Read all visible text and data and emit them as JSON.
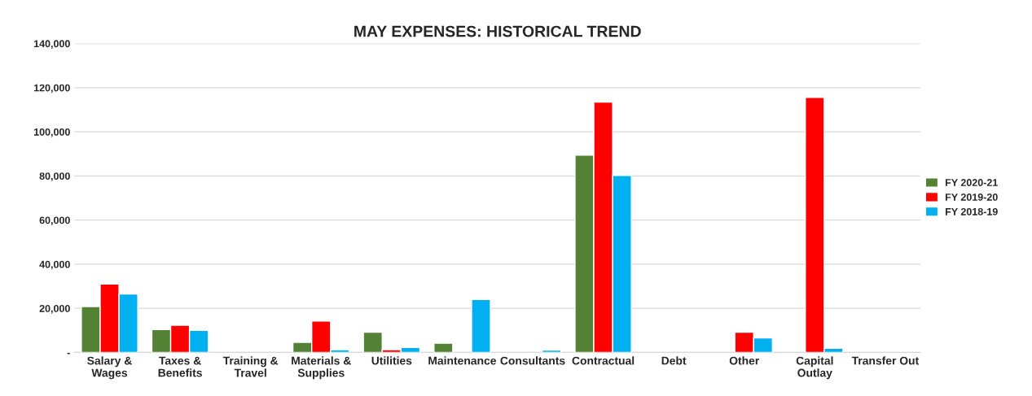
{
  "chart_data": {
    "type": "bar",
    "title": "MAY EXPENSES: HISTORICAL TREND",
    "categories": [
      "Salary &\nWages",
      "Taxes &\nBenefits",
      "Training &\nTravel",
      "Materials &\nSupplies",
      "Utilities",
      "Maintenance",
      "Consultants",
      "Contractual",
      "Debt",
      "Other",
      "Capital\nOutlay",
      "Transfer Out"
    ],
    "series": [
      {
        "name": "FY 2020-21",
        "color": "#548235",
        "values": [
          20800,
          10400,
          null,
          4600,
          9200,
          4200,
          null,
          89400,
          null,
          null,
          null,
          null
        ]
      },
      {
        "name": "FY 2019-20",
        "color": "#ff0000",
        "values": [
          31000,
          12300,
          null,
          14200,
          1200,
          null,
          null,
          113500,
          null,
          9200,
          115600,
          null
        ]
      },
      {
        "name": "FY 2018-19",
        "color": "#00b0f0",
        "values": [
          26500,
          10000,
          null,
          1200,
          2300,
          24000,
          1100,
          80200,
          null,
          6600,
          1900,
          null
        ]
      }
    ],
    "ylim": [
      0,
      140000
    ],
    "yticks": [
      {
        "value": 0,
        "label": "-"
      },
      {
        "value": 20000,
        "label": "20,000"
      },
      {
        "value": 40000,
        "label": "40,000"
      },
      {
        "value": 60000,
        "label": "60,000"
      },
      {
        "value": 80000,
        "label": "80,000"
      },
      {
        "value": 100000,
        "label": "100,000"
      },
      {
        "value": 120000,
        "label": "120,000"
      },
      {
        "value": 140000,
        "label": "140,000"
      }
    ],
    "grid": "y",
    "legend": "right"
  }
}
